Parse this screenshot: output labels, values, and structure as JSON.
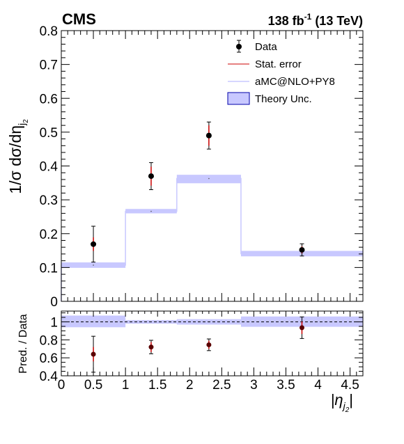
{
  "header": {
    "experiment": "CMS",
    "lumi_value": "138 fb",
    "lumi_exp": "-1",
    "lumi_energy": " (13 TeV)"
  },
  "chart_data": {
    "type": "histogram",
    "x_edges": [
      0,
      1,
      1.8,
      2.8,
      4.7
    ],
    "xlim": [
      0,
      4.7
    ],
    "x_ticks": [
      0,
      0.5,
      1,
      1.5,
      2,
      2.5,
      3,
      3.5,
      4,
      4.5
    ],
    "x_tick_labels": [
      "0",
      "0.5",
      "1",
      "1.5",
      "2",
      "2.5",
      "3",
      "3.5",
      "4",
      "4.5"
    ],
    "xlabel_sym": "|η",
    "xlabel_sub": "j",
    "xlabel_subsub": "2",
    "xlabel_close": "|",
    "main": {
      "ylim": [
        0,
        0.8
      ],
      "y_ticks": [
        0,
        0.1,
        0.2,
        0.3,
        0.4,
        0.5,
        0.6,
        0.7,
        0.8
      ],
      "y_tick_labels": [
        "0",
        "0.1",
        "0.2",
        "0.3",
        "0.4",
        "0.5",
        "0.6",
        "0.7",
        "0.8"
      ],
      "ylabel_main": "1/σ dσ/dη",
      "ylabel_sub": "j",
      "ylabel_subsub": "2",
      "prediction": {
        "name": "aMC@NLO+PY8",
        "values": [
          0.107,
          0.266,
          0.363,
          0.141
        ],
        "unc_low": [
          0.099,
          0.26,
          0.349,
          0.133
        ],
        "unc_high": [
          0.115,
          0.273,
          0.374,
          0.149
        ]
      },
      "data": {
        "name": "Data",
        "x": [
          0.5,
          1.4,
          2.3,
          3.75
        ],
        "y": [
          0.169,
          0.37,
          0.49,
          0.152
        ],
        "stat_err": [
          0.02,
          0.028,
          0.03,
          0.01
        ],
        "tot_err": [
          0.053,
          0.04,
          0.04,
          0.018
        ]
      }
    },
    "ratio": {
      "ylim": [
        0.4,
        1.12
      ],
      "y_ticks": [
        0.4,
        0.6,
        0.8,
        1.0
      ],
      "y_tick_labels": [
        "0.4",
        "0.6",
        "0.8",
        "1"
      ],
      "ylabel": "Pred. / Data",
      "reference_line": 1.0,
      "band_low": [
        0.94,
        0.98,
        0.97,
        0.945
      ],
      "band_high": [
        1.07,
        1.02,
        1.03,
        1.06
      ],
      "points_y": [
        0.64,
        0.72,
        0.745,
        0.935
      ],
      "stat_err": [
        0.08,
        0.055,
        0.045,
        0.07
      ],
      "tot_err": [
        0.2,
        0.075,
        0.065,
        0.12
      ]
    },
    "legend": {
      "position": "top-right",
      "entries": [
        {
          "label": "Data",
          "style": "marker"
        },
        {
          "label": "Stat. error",
          "style": "line",
          "color": "#cc0000"
        },
        {
          "label": "aMC@NLO+PY8",
          "style": "line",
          "color": "#c8c8ff"
        },
        {
          "label": "Theory Unc.",
          "style": "box",
          "color": "#c8c8ff",
          "edge": "#0000aa"
        }
      ]
    },
    "colors": {
      "band": "#c8c8ff",
      "prediction_line": "#c8c8ff",
      "stat": "#cc0000",
      "data": "#000000"
    }
  }
}
